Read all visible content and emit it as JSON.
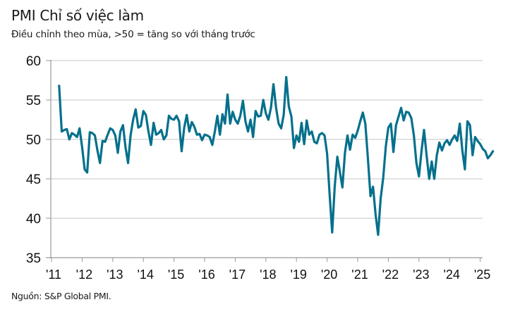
{
  "header": {
    "title": "PMI Chỉ số việc làm",
    "subtitle": "Điều chỉnh theo mùa, >50 = tăng so với tháng trước"
  },
  "footer": {
    "source": "Nguồn: S&P Global PMI."
  },
  "colors": {
    "line": "#04708c",
    "grid": "#d9d9d9",
    "axis": "#9a9a9a",
    "text": "#111111"
  },
  "chart_data": {
    "type": "line",
    "title": "PMI Chỉ số việc làm",
    "subtitle": "Điều chỉnh theo mùa, >50 = tăng so với tháng trước",
    "xlabel": "",
    "ylabel": "",
    "ylim": [
      35,
      60
    ],
    "yticks": [
      35,
      40,
      45,
      50,
      55,
      60
    ],
    "ytick_labels": [
      "35",
      "40",
      "45",
      "50",
      "55",
      "60"
    ],
    "xlim_year": [
      2011,
      2025.25
    ],
    "xticks": [
      2011,
      2012,
      2013,
      2014,
      2015,
      2016,
      2017,
      2018,
      2019,
      2020,
      2021,
      2022,
      2023,
      2024,
      2025
    ],
    "xtick_labels": [
      "'11",
      "'12",
      "'13",
      "'14",
      "'15",
      "'16",
      "'17",
      "'18",
      "'19",
      "'20",
      "'21",
      "'22",
      "'23",
      "'24",
      "'25"
    ],
    "grid": "horizontal",
    "legend": "none",
    "series": [
      {
        "name": "PMI Chỉ số việc làm",
        "start": "2011-04",
        "frequency": "monthly",
        "values": [
          56.8,
          51.0,
          51.2,
          51.3,
          50.0,
          50.8,
          50.6,
          50.3,
          51.4,
          49.0,
          46.2,
          45.8,
          50.9,
          50.8,
          50.5,
          48.6,
          47.0,
          49.8,
          49.7,
          50.6,
          51.4,
          51.2,
          50.5,
          48.3,
          51.0,
          51.8,
          49.0,
          47.0,
          50.5,
          52.5,
          53.8,
          51.5,
          51.7,
          53.6,
          53.1,
          51.0,
          49.3,
          52.1,
          50.6,
          50.8,
          51.2,
          50.0,
          50.5,
          53.0,
          52.6,
          52.5,
          53.0,
          52.3,
          48.5,
          51.5,
          53.1,
          51.0,
          52.2,
          51.6,
          50.6,
          50.7,
          49.9,
          50.6,
          50.5,
          50.3,
          49.3,
          51.0,
          53.0,
          50.6,
          53.2,
          52.0,
          55.7,
          52.0,
          53.5,
          52.5,
          52.0,
          53.0,
          54.9,
          52.3,
          51.0,
          52.5,
          50.3,
          53.6,
          52.9,
          53.0,
          55.0,
          53.3,
          52.5,
          54.0,
          57.0,
          54.0,
          52.0,
          51.4,
          53.1,
          57.9,
          54.2,
          52.9,
          48.9,
          50.5,
          49.7,
          52.1,
          49.4,
          52.4,
          50.6,
          51.0,
          49.7,
          49.5,
          50.6,
          50.8,
          50.5,
          48.2,
          43.0,
          38.2,
          44.0,
          47.8,
          45.9,
          43.9,
          48.3,
          50.5,
          48.7,
          50.6,
          50.2,
          51.1,
          52.3,
          53.4,
          52.0,
          47.5,
          42.8,
          44.0,
          40.5,
          37.9,
          42.5,
          45.2,
          49.1,
          51.5,
          52.0,
          48.4,
          51.8,
          52.9,
          54.0,
          52.4,
          53.5,
          53.4,
          52.7,
          50.5,
          47.0,
          45.3,
          48.5,
          51.2,
          48.0,
          45.0,
          47.2,
          45.0,
          48.0,
          49.6,
          48.6,
          49.5,
          49.9,
          49.3,
          50.0,
          50.5,
          49.8,
          52.0,
          48.6,
          46.2,
          52.3,
          51.8,
          48.0,
          50.3,
          49.8,
          49.4,
          48.8,
          48.5,
          47.6,
          48.0,
          48.5
        ]
      }
    ]
  }
}
